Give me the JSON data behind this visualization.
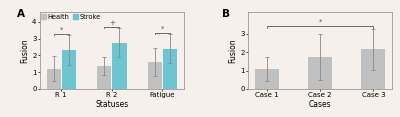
{
  "panel_A": {
    "label": "A",
    "categories": [
      "R 1",
      "R 2",
      "Fatigue"
    ],
    "xlabel": "Statuses",
    "ylabel": "Fusion",
    "ylim": [
      0,
      4.6
    ],
    "yticks": [
      0,
      1,
      2,
      3,
      4
    ],
    "health_values": [
      1.2,
      1.35,
      1.6
    ],
    "stroke_values": [
      2.3,
      2.75,
      2.4
    ],
    "health_err": [
      0.75,
      0.55,
      0.85
    ],
    "stroke_err": [
      0.9,
      0.85,
      0.85
    ],
    "health_color": "#c0c0c0",
    "stroke_color": "#6cc5d0",
    "bar_width": 0.28,
    "significance": [
      "*",
      "+",
      "*"
    ],
    "legend_labels": [
      "Health",
      "Stroke"
    ]
  },
  "panel_B": {
    "label": "B",
    "categories": [
      "Case 1",
      "Case 2",
      "Case 3"
    ],
    "xlabel": "Cases",
    "ylabel": "Fusion",
    "ylim": [
      0,
      4.2
    ],
    "yticks": [
      0,
      1,
      2,
      3
    ],
    "values": [
      1.1,
      1.75,
      2.15
    ],
    "errors": [
      0.65,
      1.25,
      1.1
    ],
    "bar_color": "#c0c0c0",
    "bar_width": 0.45,
    "significance": "*"
  },
  "bg_color": "#f5f0eb",
  "axis_fontsize": 5.5,
  "tick_fontsize": 5.0,
  "label_fontsize": 7.5,
  "legend_fontsize": 4.8
}
